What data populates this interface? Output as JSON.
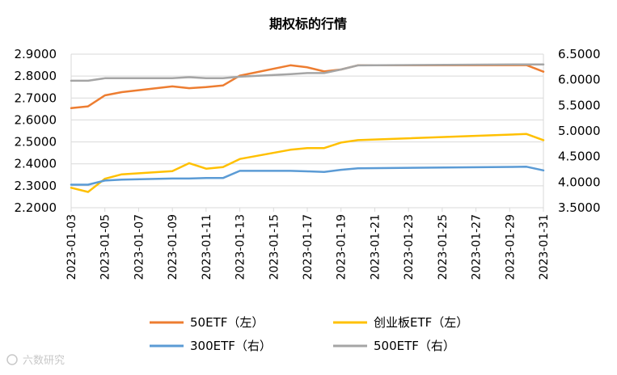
{
  "chart_data": {
    "type": "line",
    "title": "期权标的行情",
    "x_tick_labels": [
      "2023-01-03",
      "2023-01-05",
      "2023-01-07",
      "2023-01-09",
      "2023-01-11",
      "2023-01-13",
      "2023-01-15",
      "2023-01-17",
      "2023-01-19",
      "2023-01-21",
      "2023-01-23",
      "2023-01-25",
      "2023-01-27",
      "2023-01-29",
      "2023-01-31"
    ],
    "x_range": [
      "2023-01-03",
      "2023-01-31"
    ],
    "left_axis": {
      "ylim": [
        2.2,
        2.9
      ],
      "ticks": [
        "2.2000",
        "2.3000",
        "2.4000",
        "2.5000",
        "2.6000",
        "2.7000",
        "2.8000",
        "2.9000"
      ]
    },
    "right_axis": {
      "ylim": [
        3.5,
        6.5
      ],
      "ticks": [
        "3.5000",
        "4.0000",
        "4.5000",
        "5.0000",
        "5.5000",
        "6.0000",
        "6.5000"
      ]
    },
    "grid": "horizontal",
    "legend_position": "bottom",
    "series": [
      {
        "name": "50ETF（左）",
        "axis": "left",
        "color": "#ED7D31",
        "points": [
          [
            "2023-01-03",
            2.654
          ],
          [
            "2023-01-04",
            2.662
          ],
          [
            "2023-01-05",
            2.712
          ],
          [
            "2023-01-06",
            2.727
          ],
          [
            "2023-01-09",
            2.753
          ],
          [
            "2023-01-10",
            2.745
          ],
          [
            "2023-01-11",
            2.75
          ],
          [
            "2023-01-12",
            2.757
          ],
          [
            "2023-01-13",
            2.802
          ],
          [
            "2023-01-16",
            2.849
          ],
          [
            "2023-01-17",
            2.84
          ],
          [
            "2023-01-18",
            2.821
          ],
          [
            "2023-01-19",
            2.83
          ],
          [
            "2023-01-20",
            2.849
          ],
          [
            "2023-01-30",
            2.85
          ],
          [
            "2023-01-31",
            2.82
          ]
        ]
      },
      {
        "name": "创业板ETF（左）",
        "axis": "left",
        "color": "#FFC000",
        "points": [
          [
            "2023-01-03",
            2.291
          ],
          [
            "2023-01-04",
            2.272
          ],
          [
            "2023-01-05",
            2.332
          ],
          [
            "2023-01-06",
            2.352
          ],
          [
            "2023-01-09",
            2.367
          ],
          [
            "2023-01-10",
            2.403
          ],
          [
            "2023-01-11",
            2.378
          ],
          [
            "2023-01-12",
            2.385
          ],
          [
            "2023-01-13",
            2.422
          ],
          [
            "2023-01-16",
            2.464
          ],
          [
            "2023-01-17",
            2.472
          ],
          [
            "2023-01-18",
            2.472
          ],
          [
            "2023-01-19",
            2.497
          ],
          [
            "2023-01-20",
            2.508
          ],
          [
            "2023-01-30",
            2.536
          ],
          [
            "2023-01-31",
            2.508
          ]
        ]
      },
      {
        "name": "300ETF（右）",
        "axis": "right",
        "color": "#5B9BD5",
        "points": [
          [
            "2023-01-03",
            3.95
          ],
          [
            "2023-01-04",
            3.95
          ],
          [
            "2023-01-05",
            4.03
          ],
          [
            "2023-01-06",
            4.05
          ],
          [
            "2023-01-09",
            4.07
          ],
          [
            "2023-01-10",
            4.07
          ],
          [
            "2023-01-11",
            4.08
          ],
          [
            "2023-01-12",
            4.08
          ],
          [
            "2023-01-13",
            4.22
          ],
          [
            "2023-01-16",
            4.22
          ],
          [
            "2023-01-17",
            4.21
          ],
          [
            "2023-01-18",
            4.2
          ],
          [
            "2023-01-19",
            4.24
          ],
          [
            "2023-01-20",
            4.27
          ],
          [
            "2023-01-30",
            4.3
          ],
          [
            "2023-01-31",
            4.23
          ]
        ]
      },
      {
        "name": "500ETF（右）",
        "axis": "right",
        "color": "#A5A5A5",
        "points": [
          [
            "2023-01-03",
            5.98
          ],
          [
            "2023-01-04",
            5.98
          ],
          [
            "2023-01-05",
            6.03
          ],
          [
            "2023-01-06",
            6.03
          ],
          [
            "2023-01-09",
            6.03
          ],
          [
            "2023-01-10",
            6.05
          ],
          [
            "2023-01-11",
            6.03
          ],
          [
            "2023-01-12",
            6.03
          ],
          [
            "2023-01-13",
            6.06
          ],
          [
            "2023-01-16",
            6.11
          ],
          [
            "2023-01-17",
            6.13
          ],
          [
            "2023-01-18",
            6.13
          ],
          [
            "2023-01-19",
            6.2
          ],
          [
            "2023-01-20",
            6.28
          ],
          [
            "2023-01-30",
            6.3
          ],
          [
            "2023-01-31",
            6.3
          ]
        ]
      }
    ]
  },
  "watermark": "六数研究"
}
